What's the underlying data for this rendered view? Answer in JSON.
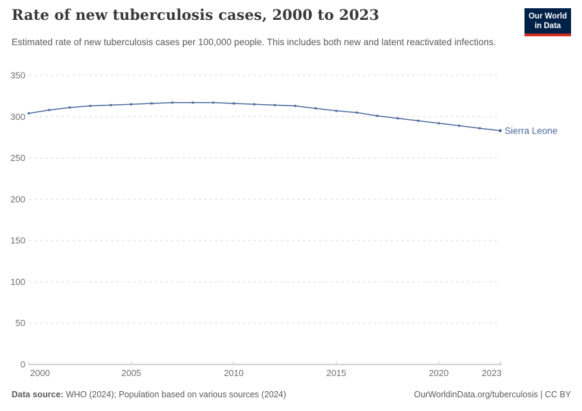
{
  "header": {
    "title": "Rate of new tuberculosis cases, 2000 to 2023",
    "subtitle": "Estimated rate of new tuberculosis cases per 100,000 people. This includes both new and latent reactivated infections.",
    "logo": {
      "line1": "Our World",
      "line2": "in Data",
      "bg_color": "#002147",
      "stripe_color": "#d42b21",
      "text_color": "#ffffff"
    }
  },
  "chart_data": {
    "type": "line",
    "title": "Rate of new tuberculosis cases, 2000 to 2023",
    "xlabel": "",
    "ylabel": "",
    "x": [
      2000,
      2001,
      2002,
      2003,
      2004,
      2005,
      2006,
      2007,
      2008,
      2009,
      2010,
      2011,
      2012,
      2013,
      2014,
      2015,
      2016,
      2017,
      2018,
      2019,
      2020,
      2021,
      2022,
      2023
    ],
    "series": [
      {
        "name": "Sierra Leone",
        "color": "#4c6a9c",
        "values": [
          304,
          308,
          311,
          313,
          314,
          315,
          316,
          317,
          317,
          317,
          316,
          315,
          314,
          313,
          310,
          307,
          305,
          301,
          298,
          295,
          292,
          289,
          286,
          283
        ]
      }
    ],
    "x_ticks": [
      2000,
      2005,
      2010,
      2015,
      2020,
      2023
    ],
    "y_ticks": [
      0,
      50,
      100,
      150,
      200,
      250,
      300,
      350
    ],
    "xlim": [
      2000,
      2023
    ],
    "ylim": [
      0,
      350
    ],
    "grid": "horizontal-dashed",
    "legend_position": "end-of-line-label",
    "gridline_color": "#dcdcdc",
    "axis_line_color": "#a3a3a3"
  },
  "footer": {
    "source_label": "Data source:",
    "source_text": "WHO (2024); Population based on various sources (2024)",
    "link_text": "OurWorldinData.org/tuberculosis | CC BY"
  }
}
